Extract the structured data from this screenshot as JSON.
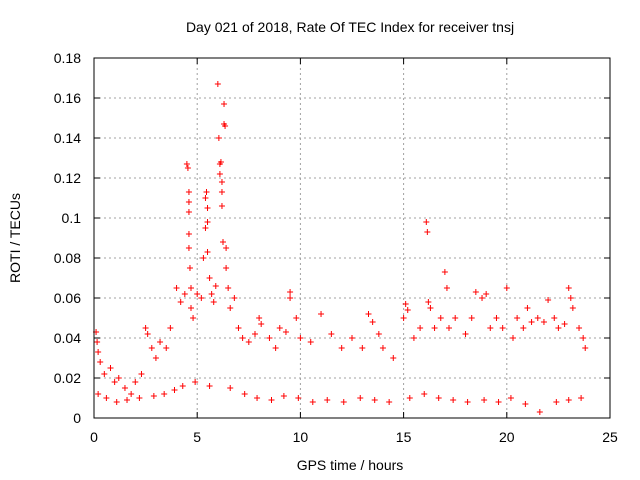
{
  "chart_data": {
    "type": "scatter",
    "title": "Day 021 of 2018, Rate Of TEC Index for receiver tnsj",
    "xlabel": "GPS time / hours",
    "ylabel": "ROTI / TECUs",
    "xlim": [
      0,
      25
    ],
    "ylim": [
      0,
      0.18
    ],
    "xticks": [
      0,
      5,
      10,
      15,
      20,
      25
    ],
    "xtick_labels": [
      "0",
      "5",
      "10",
      "15",
      "20",
      "25"
    ],
    "yticks": [
      0,
      0.02,
      0.04,
      0.06,
      0.08,
      0.1,
      0.12,
      0.14,
      0.16,
      0.18
    ],
    "ytick_labels": [
      "0",
      "0.02",
      "0.04",
      "0.06",
      "0.08",
      "0.1",
      "0.12",
      "0.14",
      "0.16",
      "0.18"
    ],
    "grid": true,
    "marker": "plus",
    "color": "#ff0000",
    "series": [
      {
        "name": "ROTI",
        "points": [
          [
            0.1,
            0.043
          ],
          [
            0.15,
            0.038
          ],
          [
            0.2,
            0.033
          ],
          [
            0.3,
            0.028
          ],
          [
            0.5,
            0.022
          ],
          [
            0.8,
            0.025
          ],
          [
            1.0,
            0.018
          ],
          [
            1.2,
            0.02
          ],
          [
            1.5,
            0.015
          ],
          [
            1.8,
            0.012
          ],
          [
            2.0,
            0.018
          ],
          [
            2.3,
            0.022
          ],
          [
            2.5,
            0.045
          ],
          [
            2.6,
            0.042
          ],
          [
            2.8,
            0.035
          ],
          [
            3.0,
            0.03
          ],
          [
            3.2,
            0.038
          ],
          [
            3.5,
            0.035
          ],
          [
            3.7,
            0.045
          ],
          [
            4.0,
            0.065
          ],
          [
            4.2,
            0.058
          ],
          [
            4.4,
            0.062
          ],
          [
            4.5,
            0.127
          ],
          [
            4.55,
            0.125
          ],
          [
            4.6,
            0.113
          ],
          [
            4.6,
            0.108
          ],
          [
            4.6,
            0.103
          ],
          [
            4.6,
            0.092
          ],
          [
            4.6,
            0.085
          ],
          [
            4.65,
            0.075
          ],
          [
            4.7,
            0.065
          ],
          [
            4.7,
            0.055
          ],
          [
            4.8,
            0.05
          ],
          [
            5.0,
            0.062
          ],
          [
            5.2,
            0.06
          ],
          [
            5.3,
            0.08
          ],
          [
            5.4,
            0.095
          ],
          [
            5.4,
            0.11
          ],
          [
            5.45,
            0.113
          ],
          [
            5.5,
            0.105
          ],
          [
            5.5,
            0.098
          ],
          [
            5.5,
            0.083
          ],
          [
            5.6,
            0.07
          ],
          [
            5.7,
            0.062
          ],
          [
            5.8,
            0.058
          ],
          [
            5.9,
            0.066
          ],
          [
            6.0,
            0.167
          ],
          [
            6.05,
            0.14
          ],
          [
            6.1,
            0.127
          ],
          [
            6.1,
            0.122
          ],
          [
            6.15,
            0.128
          ],
          [
            6.2,
            0.118
          ],
          [
            6.2,
            0.113
          ],
          [
            6.2,
            0.106
          ],
          [
            6.25,
            0.088
          ],
          [
            6.3,
            0.157
          ],
          [
            6.3,
            0.147
          ],
          [
            6.35,
            0.146
          ],
          [
            6.4,
            0.085
          ],
          [
            6.4,
            0.075
          ],
          [
            6.5,
            0.065
          ],
          [
            6.6,
            0.055
          ],
          [
            6.8,
            0.06
          ],
          [
            7.0,
            0.045
          ],
          [
            7.2,
            0.04
          ],
          [
            7.5,
            0.038
          ],
          [
            7.8,
            0.042
          ],
          [
            8.0,
            0.05
          ],
          [
            8.1,
            0.047
          ],
          [
            8.5,
            0.04
          ],
          [
            8.8,
            0.035
          ],
          [
            9.0,
            0.045
          ],
          [
            9.3,
            0.043
          ],
          [
            9.5,
            0.063
          ],
          [
            9.5,
            0.06
          ],
          [
            9.8,
            0.05
          ],
          [
            10.0,
            0.04
          ],
          [
            10.5,
            0.038
          ],
          [
            11.0,
            0.052
          ],
          [
            11.5,
            0.042
          ],
          [
            12.0,
            0.035
          ],
          [
            12.5,
            0.04
          ],
          [
            13.0,
            0.035
          ],
          [
            13.3,
            0.052
          ],
          [
            13.5,
            0.048
          ],
          [
            13.8,
            0.042
          ],
          [
            14.0,
            0.035
          ],
          [
            14.5,
            0.03
          ],
          [
            15.0,
            0.05
          ],
          [
            15.1,
            0.057
          ],
          [
            15.2,
            0.054
          ],
          [
            15.5,
            0.04
          ],
          [
            15.8,
            0.045
          ],
          [
            16.1,
            0.098
          ],
          [
            16.15,
            0.093
          ],
          [
            16.2,
            0.058
          ],
          [
            16.3,
            0.055
          ],
          [
            16.5,
            0.045
          ],
          [
            16.8,
            0.05
          ],
          [
            17.0,
            0.073
          ],
          [
            17.1,
            0.065
          ],
          [
            17.2,
            0.045
          ],
          [
            17.5,
            0.05
          ],
          [
            18.0,
            0.042
          ],
          [
            18.3,
            0.05
          ],
          [
            18.5,
            0.063
          ],
          [
            18.8,
            0.06
          ],
          [
            19.0,
            0.062
          ],
          [
            19.2,
            0.045
          ],
          [
            19.5,
            0.05
          ],
          [
            19.8,
            0.045
          ],
          [
            20.0,
            0.065
          ],
          [
            20.3,
            0.04
          ],
          [
            20.5,
            0.05
          ],
          [
            20.8,
            0.045
          ],
          [
            21.0,
            0.055
          ],
          [
            21.2,
            0.048
          ],
          [
            21.5,
            0.05
          ],
          [
            21.8,
            0.048
          ],
          [
            22.0,
            0.059
          ],
          [
            22.3,
            0.05
          ],
          [
            22.5,
            0.045
          ],
          [
            22.8,
            0.047
          ],
          [
            23.0,
            0.065
          ],
          [
            23.1,
            0.06
          ],
          [
            23.2,
            0.055
          ],
          [
            23.5,
            0.045
          ],
          [
            23.7,
            0.04
          ],
          [
            23.8,
            0.035
          ],
          [
            0.2,
            0.012
          ],
          [
            0.6,
            0.01
          ],
          [
            1.1,
            0.008
          ],
          [
            1.6,
            0.009
          ],
          [
            2.2,
            0.01
          ],
          [
            2.9,
            0.011
          ],
          [
            3.4,
            0.012
          ],
          [
            3.9,
            0.014
          ],
          [
            4.3,
            0.016
          ],
          [
            4.9,
            0.018
          ],
          [
            5.6,
            0.016
          ],
          [
            6.6,
            0.015
          ],
          [
            7.3,
            0.012
          ],
          [
            7.9,
            0.01
          ],
          [
            8.6,
            0.009
          ],
          [
            9.2,
            0.011
          ],
          [
            9.9,
            0.01
          ],
          [
            10.6,
            0.008
          ],
          [
            11.3,
            0.009
          ],
          [
            12.1,
            0.008
          ],
          [
            12.9,
            0.01
          ],
          [
            13.6,
            0.009
          ],
          [
            14.3,
            0.008
          ],
          [
            15.3,
            0.01
          ],
          [
            16.0,
            0.012
          ],
          [
            16.7,
            0.01
          ],
          [
            17.4,
            0.009
          ],
          [
            18.1,
            0.008
          ],
          [
            18.9,
            0.009
          ],
          [
            19.6,
            0.008
          ],
          [
            20.2,
            0.01
          ],
          [
            20.9,
            0.007
          ],
          [
            21.6,
            0.003
          ],
          [
            22.4,
            0.008
          ],
          [
            23.0,
            0.009
          ],
          [
            23.6,
            0.01
          ]
        ]
      }
    ]
  }
}
